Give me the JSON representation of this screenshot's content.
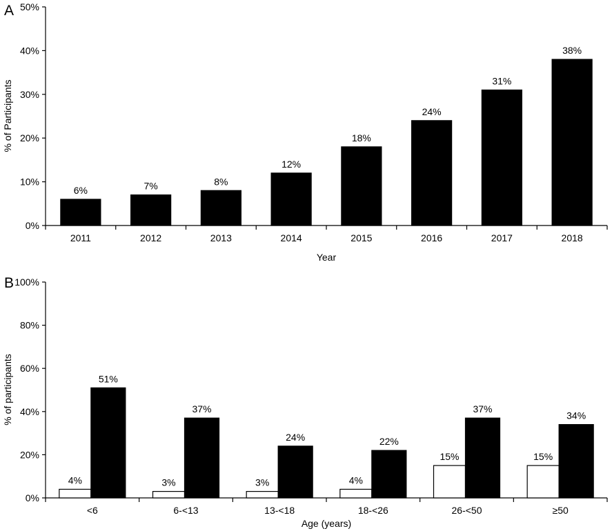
{
  "chart_data": [
    {
      "panel": "A",
      "type": "bar",
      "title": "",
      "xlabel": "Year",
      "ylabel": "% of Participants",
      "ylim": [
        0,
        50
      ],
      "ytick_labels": [
        "0%",
        "10%",
        "20%",
        "30%",
        "40%",
        "50%"
      ],
      "ytick_values": [
        0,
        10,
        20,
        30,
        40,
        50
      ],
      "categories": [
        "2011",
        "2012",
        "2013",
        "2014",
        "2015",
        "2016",
        "2017",
        "2018"
      ],
      "series": [
        {
          "fill": "#000000",
          "values": [
            6,
            7,
            8,
            12,
            18,
            24,
            31,
            38
          ],
          "data_labels": [
            "6%",
            "7%",
            "8%",
            "12%",
            "18%",
            "24%",
            "31%",
            "38%"
          ]
        }
      ],
      "grid": false,
      "legend": "none"
    },
    {
      "panel": "B",
      "type": "bar",
      "title": "",
      "xlabel": "Age (years)",
      "ylabel": "% of participants",
      "ylim": [
        0,
        100
      ],
      "ytick_labels": [
        "0%",
        "20%",
        "40%",
        "60%",
        "80%",
        "100%"
      ],
      "ytick_values": [
        0,
        20,
        40,
        60,
        80,
        100
      ],
      "categories": [
        "<6",
        "6-<13",
        "13-<18",
        "18-<26",
        "26-<50",
        "≥50"
      ],
      "series": [
        {
          "fill": "#ffffff",
          "values": [
            4,
            3,
            3,
            4,
            15,
            15
          ],
          "data_labels": [
            "4%",
            "3%",
            "3%",
            "4%",
            "15%",
            "15%"
          ]
        },
        {
          "fill": "#000000",
          "values": [
            51,
            37,
            24,
            22,
            37,
            34
          ],
          "data_labels": [
            "51%",
            "37%",
            "24%",
            "22%",
            "37%",
            "34%"
          ]
        }
      ],
      "grid": false,
      "legend": "none"
    }
  ]
}
